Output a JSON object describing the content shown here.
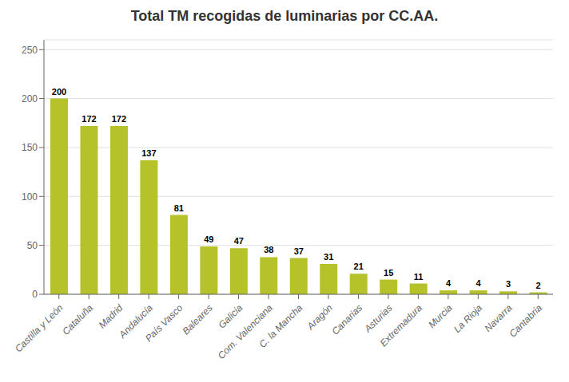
{
  "chart_data": {
    "type": "bar",
    "title": "Total TM recogidas de luminarias por CC.AA.",
    "categories": [
      "Castilla y León",
      "Cataluña",
      "Madrid",
      "Andalucía",
      "País Vasco",
      "Baleares",
      "Galicia",
      "Com. Valenciana",
      "C. la Mancha",
      "Aragón",
      "Canarias",
      "Asturias",
      "Extremadura",
      "Murcia",
      "La Rioja",
      "Navarra",
      "Cantabria"
    ],
    "values": [
      200,
      172,
      172,
      137,
      81,
      49,
      47,
      38,
      37,
      31,
      21,
      15,
      11,
      4,
      4,
      3,
      2
    ],
    "color": "#b5c229",
    "ylim": [
      0,
      260
    ],
    "yticks": [
      0,
      50,
      100,
      150,
      200,
      250
    ],
    "grid": true,
    "data_labels": true
  }
}
